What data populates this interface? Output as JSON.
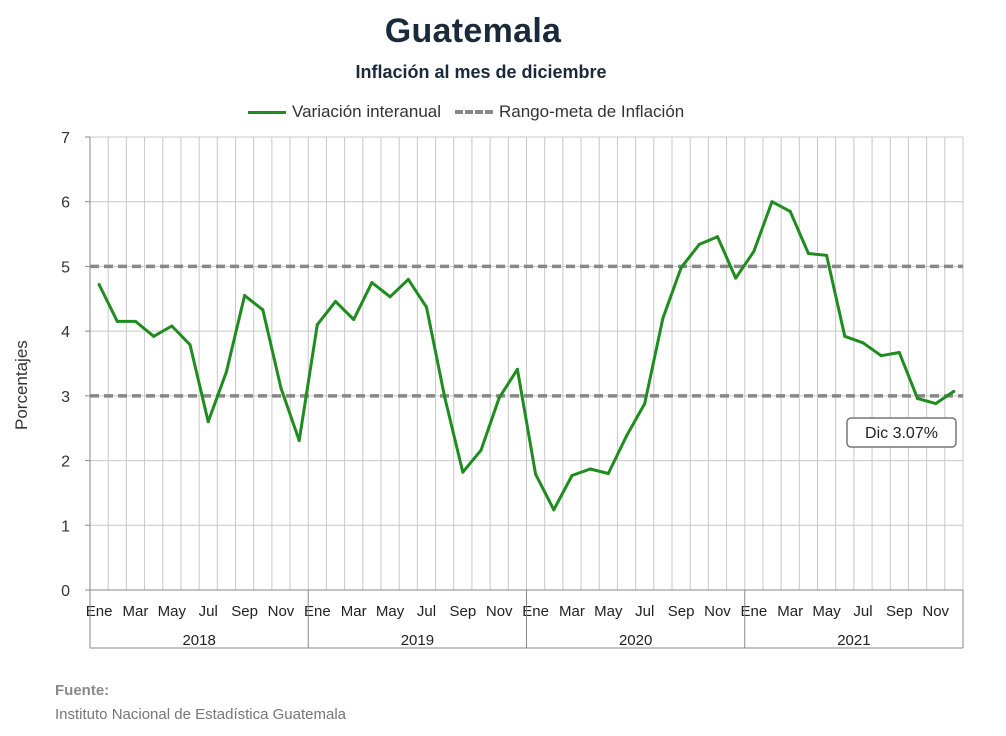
{
  "header": {
    "title": "Guatemala",
    "subtitle": "Inflación al mes de diciembre"
  },
  "legend": {
    "series_label": "Variación interanual",
    "range_label": "Rango-meta de Inflación"
  },
  "source": {
    "label": "Fuente:",
    "text": "Instituto Nacional de Estadística Guatemala"
  },
  "colors": {
    "series": "#1f8c1f",
    "range": "#888888",
    "grid": "#c8c8c8"
  },
  "chart_data": {
    "type": "line",
    "title": "Guatemala",
    "subtitle": "Inflación al mes de diciembre",
    "ylabel": "Porcentajes",
    "xlabel": "",
    "ylim": [
      0,
      7
    ],
    "yticks": [
      0,
      1,
      2,
      3,
      4,
      5,
      6,
      7
    ],
    "grid": true,
    "legend_position": "top",
    "month_tick_labels": [
      "Ene",
      "Mar",
      "May",
      "Jul",
      "Sep",
      "Nov"
    ],
    "years": [
      "2018",
      "2019",
      "2020",
      "2021"
    ],
    "series": [
      {
        "name": "Variación interanual",
        "values": [
          4.72,
          4.15,
          4.15,
          3.92,
          4.08,
          3.79,
          2.6,
          3.37,
          4.55,
          4.33,
          3.12,
          2.31,
          4.1,
          4.46,
          4.18,
          4.75,
          4.53,
          4.8,
          4.37,
          2.98,
          1.82,
          2.16,
          2.97,
          3.41,
          1.79,
          1.24,
          1.77,
          1.87,
          1.8,
          2.38,
          2.88,
          4.2,
          4.98,
          5.34,
          5.46,
          4.82,
          5.23,
          6.0,
          5.85,
          5.2,
          5.17,
          3.92,
          3.82,
          3.62,
          3.67,
          2.96,
          2.88,
          3.07
        ]
      },
      {
        "name": "Rango-meta de Inflación",
        "upper": 5,
        "lower": 3
      }
    ],
    "annotation": "Dic 3.07%"
  }
}
